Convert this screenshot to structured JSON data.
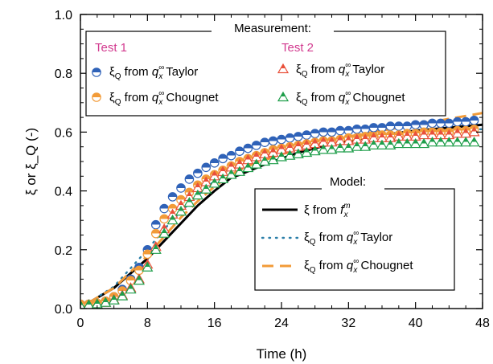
{
  "chart_data": {
    "type": "line",
    "xlabel": "Time (h)",
    "ylabel": "ξ or ξ_Q (-)",
    "xlim": [
      0,
      48
    ],
    "ylim": [
      0,
      1.0
    ],
    "xticks": [
      "0",
      "8",
      "16",
      "24",
      "32",
      "40",
      "48"
    ],
    "yticks": [
      "0.0",
      "0.2",
      "0.4",
      "0.6",
      "0.8",
      "1.0"
    ],
    "grid": false,
    "legend": {
      "measurement_title": "Measurement:",
      "test1_label": "Test 1",
      "test2_label": "Test 2",
      "model_title": "Model:",
      "placement": "top and center-right",
      "entries": {
        "t1_taylor": {
          "pre": "ξ",
          "sub": "Q",
          "mid": " from ",
          "q": "q",
          "qsub": "x",
          "qsup": "∞",
          "post": " Taylor"
        },
        "t1_chougnet": {
          "pre": "ξ",
          "sub": "Q",
          "mid": " from ",
          "q": "q",
          "qsub": "x",
          "qsup": "∞",
          "post": " Chougnet"
        },
        "t2_taylor": {
          "pre": "ξ",
          "sub": "Q",
          "mid": " from ",
          "q": "q",
          "qsub": "x",
          "qsup": "∞",
          "post": " Taylor"
        },
        "t2_chougnet": {
          "pre": "ξ",
          "sub": "Q",
          "mid": " from ",
          "q": "q",
          "qsub": "x",
          "qsup": "∞",
          "post": " Chougnet"
        },
        "model_xi": {
          "pre": "ξ",
          "mid": " from ",
          "f": "f",
          "fsub": "x",
          "fsup": "m"
        },
        "model_taylor": {
          "pre": "ξ",
          "sub": "Q",
          "mid": " from ",
          "q": "q",
          "qsub": "x",
          "qsup": "∞",
          "post": " Taylor"
        },
        "model_chougnet": {
          "pre": "ξ",
          "sub": "Q",
          "mid": " from ",
          "q": "q",
          "qsub": "x",
          "qsup": "∞",
          "post": " Chougnet"
        }
      }
    },
    "colors": {
      "test1_blue": "#2f62b8",
      "test1_orange": "#f29b38",
      "test2_red": "#e9503a",
      "test2_green": "#1e9e4a",
      "test_label": "#d23a8f",
      "model_black": "#000000",
      "model_taylor": "#2a7ea8",
      "model_chougnet": "#f29b38"
    },
    "series": [
      {
        "name": "Test 1: ξQ from qx∞ Taylor",
        "style": "circle-half-blue",
        "x": [
          0,
          1,
          2,
          3,
          4,
          5,
          6,
          7,
          8,
          9,
          10,
          11,
          12,
          13,
          14,
          15,
          16,
          17,
          18,
          19,
          20,
          21,
          22,
          23,
          24,
          25,
          26,
          27,
          28,
          29,
          30,
          31,
          32,
          33,
          34,
          35,
          36,
          37,
          38,
          39,
          40,
          41,
          42,
          43,
          44,
          45,
          46,
          47
        ],
        "y": [
          0.015,
          0.015,
          0.018,
          0.025,
          0.04,
          0.065,
          0.1,
          0.14,
          0.2,
          0.285,
          0.34,
          0.38,
          0.41,
          0.44,
          0.46,
          0.48,
          0.495,
          0.51,
          0.52,
          0.535,
          0.545,
          0.555,
          0.565,
          0.57,
          0.575,
          0.58,
          0.585,
          0.59,
          0.595,
          0.6,
          0.6,
          0.605,
          0.605,
          0.61,
          0.61,
          0.615,
          0.615,
          0.62,
          0.62,
          0.62,
          0.625,
          0.625,
          0.63,
          0.63,
          0.63,
          0.635,
          0.635,
          0.64
        ]
      },
      {
        "name": "Test 1: ξQ from qx∞ Chougnet",
        "style": "circle-half-orange",
        "x": [
          0,
          1,
          2,
          3,
          4,
          5,
          6,
          7,
          8,
          9,
          10,
          11,
          12,
          13,
          14,
          15,
          16,
          17,
          18,
          19,
          20,
          21,
          22,
          23,
          24,
          25,
          26,
          27,
          28,
          29,
          30,
          31,
          32,
          33,
          34,
          35,
          36,
          37,
          38,
          39,
          40,
          41,
          42,
          43,
          44,
          45,
          46,
          47
        ],
        "y": [
          0.015,
          0.015,
          0.018,
          0.025,
          0.04,
          0.06,
          0.095,
          0.13,
          0.185,
          0.255,
          0.305,
          0.34,
          0.37,
          0.395,
          0.42,
          0.44,
          0.455,
          0.47,
          0.485,
          0.5,
          0.51,
          0.52,
          0.53,
          0.54,
          0.545,
          0.55,
          0.555,
          0.56,
          0.565,
          0.57,
          0.57,
          0.575,
          0.58,
          0.58,
          0.585,
          0.585,
          0.59,
          0.59,
          0.59,
          0.595,
          0.595,
          0.6,
          0.6,
          0.6,
          0.6,
          0.605,
          0.605,
          0.61
        ]
      },
      {
        "name": "Test 2: ξQ from qx∞ Taylor",
        "style": "triangle-half-red",
        "x": [
          0,
          1,
          2,
          3,
          4,
          5,
          6,
          7,
          8,
          9,
          10,
          11,
          12,
          13,
          14,
          15,
          16,
          17,
          18,
          19,
          20,
          21,
          22,
          23,
          24,
          25,
          26,
          27,
          28,
          29,
          30,
          31,
          32,
          33,
          34,
          35,
          36,
          37,
          38,
          39,
          40,
          41,
          42,
          43,
          44,
          45,
          46,
          47
        ],
        "y": [
          0.01,
          0.012,
          0.015,
          0.02,
          0.03,
          0.045,
          0.07,
          0.1,
          0.15,
          0.21,
          0.27,
          0.32,
          0.35,
          0.38,
          0.41,
          0.43,
          0.45,
          0.465,
          0.48,
          0.49,
          0.505,
          0.515,
          0.525,
          0.53,
          0.54,
          0.545,
          0.55,
          0.555,
          0.56,
          0.565,
          0.565,
          0.57,
          0.57,
          0.575,
          0.575,
          0.58,
          0.58,
          0.58,
          0.585,
          0.585,
          0.585,
          0.59,
          0.59,
          0.59,
          0.59,
          0.595,
          0.595,
          0.6
        ]
      },
      {
        "name": "Test 2: ξQ from qx∞ Chougnet",
        "style": "triangle-half-green",
        "x": [
          0,
          1,
          2,
          3,
          4,
          5,
          6,
          7,
          8,
          9,
          10,
          11,
          12,
          13,
          14,
          15,
          16,
          17,
          18,
          19,
          20,
          21,
          22,
          23,
          24,
          25,
          26,
          27,
          28,
          29,
          30,
          31,
          32,
          33,
          34,
          35,
          36,
          37,
          38,
          39,
          40,
          41,
          42,
          43,
          44,
          45,
          46,
          47
        ],
        "y": [
          0.01,
          0.012,
          0.015,
          0.02,
          0.028,
          0.042,
          0.065,
          0.095,
          0.14,
          0.2,
          0.255,
          0.3,
          0.33,
          0.36,
          0.385,
          0.405,
          0.425,
          0.44,
          0.455,
          0.465,
          0.478,
          0.49,
          0.5,
          0.505,
          0.515,
          0.52,
          0.525,
          0.53,
          0.535,
          0.54,
          0.54,
          0.545,
          0.545,
          0.55,
          0.55,
          0.555,
          0.555,
          0.555,
          0.56,
          0.56,
          0.56,
          0.56,
          0.565,
          0.565,
          0.565,
          0.565,
          0.565,
          0.565
        ]
      },
      {
        "name": "Model: ξ from fxm",
        "style": "solid-black",
        "x": [
          1,
          4,
          8,
          10,
          12,
          14,
          16,
          18,
          19,
          22,
          26,
          30,
          32,
          36,
          40,
          44,
          48
        ],
        "y": [
          0.02,
          0.07,
          0.17,
          0.23,
          0.29,
          0.35,
          0.4,
          0.445,
          0.455,
          0.49,
          0.53,
          0.56,
          0.57,
          0.59,
          0.605,
          0.615,
          0.625
        ]
      },
      {
        "name": "Model: ξQ from qx∞ Taylor",
        "style": "dotted-teal",
        "x": [
          1,
          4,
          8,
          10,
          12,
          14,
          16,
          18,
          20,
          24,
          28,
          32,
          36,
          40,
          44,
          48
        ],
        "y": [
          0.02,
          0.075,
          0.2,
          0.27,
          0.33,
          0.385,
          0.435,
          0.48,
          0.51,
          0.545,
          0.565,
          0.58,
          0.59,
          0.6,
          0.605,
          0.61
        ]
      },
      {
        "name": "Model: ξQ from qx∞ Chougnet",
        "style": "dashed-orange",
        "x": [
          1,
          4,
          8,
          10,
          12,
          14,
          16,
          18,
          20,
          24,
          28,
          32,
          36,
          40,
          44,
          48
        ],
        "y": [
          0.02,
          0.07,
          0.18,
          0.245,
          0.31,
          0.365,
          0.415,
          0.455,
          0.485,
          0.525,
          0.555,
          0.585,
          0.605,
          0.625,
          0.645,
          0.665
        ]
      }
    ]
  }
}
